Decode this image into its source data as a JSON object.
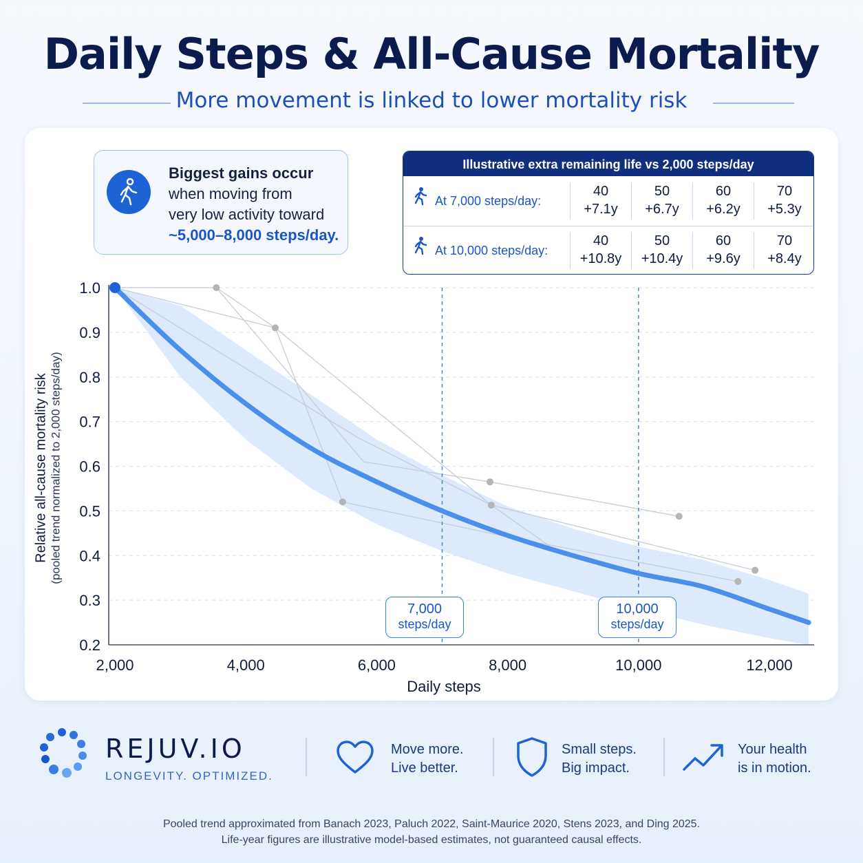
{
  "title": "Daily Steps & All-Cause Mortality",
  "subtitle": "More movement is linked to lower mortality risk",
  "callout": {
    "line1": "Biggest gains occur",
    "line2": "when moving from",
    "line3": "very low activity toward",
    "line4": "~5,000–8,000 steps/day.",
    "icon": "walking-person-icon"
  },
  "life_table": {
    "title": "Illustrative extra remaining life vs 2,000 steps/day",
    "rows": [
      {
        "label": "At 7,000 steps/day:",
        "cells": [
          {
            "age": "40",
            "gain": "+7.1y"
          },
          {
            "age": "50",
            "gain": "+6.7y"
          },
          {
            "age": "60",
            "gain": "+6.2y"
          },
          {
            "age": "70",
            "gain": "+5.3y"
          }
        ]
      },
      {
        "label": "At 10,000 steps/day:",
        "cells": [
          {
            "age": "40",
            "gain": "+10.8y"
          },
          {
            "age": "50",
            "gain": "+10.4y"
          },
          {
            "age": "60",
            "gain": "+9.6y"
          },
          {
            "age": "70",
            "gain": "+8.4y"
          }
        ]
      }
    ]
  },
  "chart_data": {
    "type": "line",
    "xlabel": "Daily steps",
    "ylabel": "Relative all-cause mortality risk",
    "ylabel_sub": "(pooled trend normalized to 2,000 steps/day)",
    "xlim": [
      2000,
      12600
    ],
    "ylim": [
      0.2,
      1.0
    ],
    "x_ticks": [
      2000,
      4000,
      6000,
      8000,
      10000,
      12000
    ],
    "x_tick_labels": [
      "2,000",
      "4,000",
      "6,000",
      "8,000",
      "10,000",
      "12,000"
    ],
    "y_ticks": [
      0.2,
      0.3,
      0.4,
      0.5,
      0.6,
      0.7,
      0.8,
      0.9,
      1.0
    ],
    "y_tick_labels": [
      "0.2",
      "0.3",
      "0.4",
      "0.5",
      "0.6",
      "0.7",
      "0.8",
      "0.9",
      "1.0"
    ],
    "grid": "horizontal dashed",
    "trend": {
      "x": [
        2000,
        3000,
        4000,
        5000,
        6000,
        7000,
        8000,
        9000,
        10000,
        11000,
        12000,
        12600
      ],
      "y": [
        1.0,
        0.86,
        0.74,
        0.64,
        0.565,
        0.5,
        0.445,
        0.4,
        0.36,
        0.33,
        0.28,
        0.25
      ]
    },
    "band": {
      "x": [
        2000,
        3000,
        4000,
        5000,
        6000,
        7000,
        8000,
        9000,
        10000,
        11000,
        12000,
        12600
      ],
      "upper": [
        1.0,
        0.96,
        0.86,
        0.76,
        0.66,
        0.58,
        0.51,
        0.46,
        0.42,
        0.39,
        0.345,
        0.315
      ],
      "lower": [
        1.0,
        0.8,
        0.66,
        0.55,
        0.47,
        0.41,
        0.36,
        0.32,
        0.28,
        0.245,
        0.215,
        0.2
      ]
    },
    "study_points": [
      {
        "x": 3550,
        "y": 1.0
      },
      {
        "x": 4450,
        "y": 0.91
      },
      {
        "x": 5480,
        "y": 0.52
      },
      {
        "x": 7730,
        "y": 0.565
      },
      {
        "x": 7750,
        "y": 0.513
      },
      {
        "x": 10620,
        "y": 0.488
      },
      {
        "x": 11520,
        "y": 0.342
      },
      {
        "x": 11780,
        "y": 0.367
      }
    ],
    "study_lines": [
      [
        [
          2000,
          1.0
        ],
        [
          3550,
          1.0
        ],
        [
          4450,
          0.91
        ],
        [
          5480,
          0.52
        ]
      ],
      [
        [
          3550,
          1.0
        ],
        [
          5800,
          0.61
        ],
        [
          7730,
          0.565
        ],
        [
          10620,
          0.488
        ]
      ],
      [
        [
          2000,
          1.0
        ],
        [
          4450,
          0.91
        ],
        [
          7750,
          0.513
        ],
        [
          8700,
          0.415
        ]
      ],
      [
        [
          2000,
          1.0
        ],
        [
          5700,
          0.665
        ],
        [
          7750,
          0.513
        ],
        [
          11780,
          0.367
        ]
      ],
      [
        [
          5480,
          0.52
        ],
        [
          7900,
          0.445
        ],
        [
          11520,
          0.342
        ]
      ]
    ],
    "reference_lines": [
      {
        "x": 7000,
        "label1": "7,000",
        "label2": "steps/day"
      },
      {
        "x": 10000,
        "label1": "10,000",
        "label2": "steps/day"
      }
    ],
    "colors": {
      "trend": "#4a90ea",
      "band": "#d6e6fb",
      "reference": "#3d7ee0",
      "points": "#b5b5b5",
      "start_point": "#1e63d6"
    }
  },
  "brand": {
    "name": "REJUV.IO",
    "tagline": "LONGEVITY. OPTIMIZED."
  },
  "features": [
    {
      "icon": "heart-icon",
      "line1": "Move more.",
      "line2": "Live better."
    },
    {
      "icon": "shield-icon",
      "line1": "Small steps.",
      "line2": "Big impact."
    },
    {
      "icon": "trend-up-icon",
      "line1": "Your health",
      "line2": "is in motion."
    }
  ],
  "footer": {
    "line1": "Pooled trend approximated from Banach 2023, Paluch 2022, Saint-Maurice 2020, Stens 2023, and Ding 2025.",
    "line2": "Life-year figures are illustrative model-based estimates, not guaranteed causal effects."
  }
}
